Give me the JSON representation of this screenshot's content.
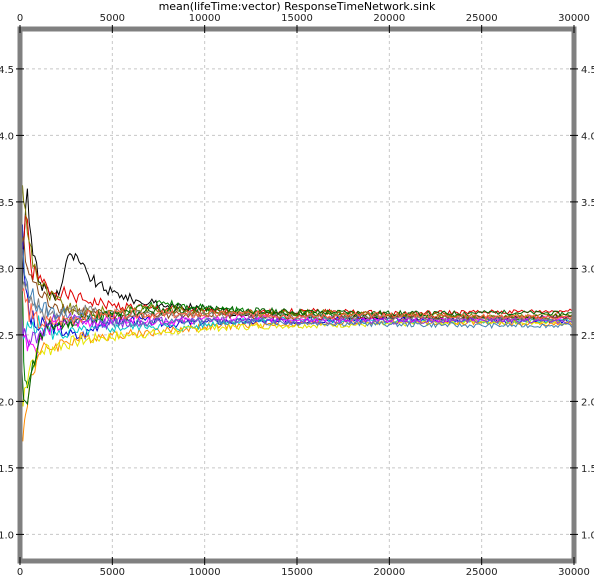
{
  "chart_data": {
    "type": "line",
    "title": "mean(lifeTime:vector) ResponseTimeNetwork.sink",
    "xlabel": "",
    "ylabel": "",
    "xlim": [
      0,
      30000
    ],
    "ylim": [
      0.8,
      4.8
    ],
    "xticks": [
      0,
      5000,
      10000,
      15000,
      20000,
      25000,
      30000
    ],
    "yticks": [
      1.0,
      1.5,
      2.0,
      2.5,
      3.0,
      3.5,
      4.0,
      4.5
    ],
    "grid": true,
    "legend": "none",
    "series": [
      {
        "color": "#000000",
        "points": [
          [
            0,
            1.2
          ],
          [
            150,
            3.0
          ],
          [
            400,
            3.6
          ],
          [
            700,
            3.1
          ],
          [
            1000,
            2.9
          ],
          [
            1400,
            2.85
          ],
          [
            1800,
            2.8
          ],
          [
            2200,
            2.85
          ],
          [
            2500,
            3.05
          ],
          [
            2800,
            3.1
          ],
          [
            3200,
            3.05
          ],
          [
            3700,
            2.95
          ],
          [
            4200,
            2.88
          ],
          [
            5000,
            2.82
          ],
          [
            5500,
            2.8
          ],
          [
            6500,
            2.75
          ],
          [
            8000,
            2.72
          ],
          [
            10000,
            2.7
          ],
          [
            12000,
            2.65
          ],
          [
            14000,
            2.66
          ],
          [
            16000,
            2.64
          ],
          [
            20000,
            2.63
          ],
          [
            25000,
            2.63
          ],
          [
            30000,
            2.64
          ]
        ]
      },
      {
        "color": "#e00000",
        "points": [
          [
            0,
            2.9
          ],
          [
            300,
            3.4
          ],
          [
            600,
            3.0
          ],
          [
            1000,
            2.92
          ],
          [
            1500,
            2.85
          ],
          [
            2500,
            2.8
          ],
          [
            3500,
            2.76
          ],
          [
            5000,
            2.72
          ],
          [
            7000,
            2.7
          ],
          [
            10000,
            2.68
          ],
          [
            13000,
            2.67
          ],
          [
            16000,
            2.68
          ],
          [
            20000,
            2.66
          ],
          [
            25000,
            2.67
          ],
          [
            30000,
            2.68
          ]
        ]
      },
      {
        "color": "#008000",
        "points": [
          [
            0,
            4.7
          ],
          [
            80,
            3.3
          ],
          [
            200,
            2.3
          ],
          [
            400,
            2.1
          ],
          [
            800,
            2.3
          ],
          [
            1200,
            2.5
          ],
          [
            1800,
            2.55
          ],
          [
            2500,
            2.6
          ],
          [
            3500,
            2.62
          ],
          [
            5000,
            2.66
          ],
          [
            7000,
            2.72
          ],
          [
            8000,
            2.74
          ],
          [
            10000,
            2.7
          ],
          [
            14000,
            2.66
          ],
          [
            18000,
            2.65
          ],
          [
            22000,
            2.64
          ],
          [
            26000,
            2.63
          ],
          [
            30000,
            2.62
          ]
        ]
      },
      {
        "color": "#0000d0",
        "points": [
          [
            0,
            3.6
          ],
          [
            200,
            3.0
          ],
          [
            500,
            2.65
          ],
          [
            900,
            2.55
          ],
          [
            1500,
            2.58
          ],
          [
            2500,
            2.52
          ],
          [
            3200,
            2.48
          ],
          [
            4500,
            2.6
          ],
          [
            6000,
            2.62
          ],
          [
            8000,
            2.58
          ],
          [
            10000,
            2.6
          ],
          [
            14000,
            2.6
          ],
          [
            18000,
            2.62
          ],
          [
            24000,
            2.61
          ],
          [
            30000,
            2.6
          ]
        ]
      },
      {
        "color": "#ff8c00",
        "points": [
          [
            0,
            1.6
          ],
          [
            150,
            1.7
          ],
          [
            300,
            1.9
          ],
          [
            600,
            2.2
          ],
          [
            1000,
            2.35
          ],
          [
            1500,
            2.4
          ],
          [
            2500,
            2.45
          ],
          [
            3500,
            2.48
          ],
          [
            5000,
            2.5
          ],
          [
            7000,
            2.52
          ],
          [
            10000,
            2.56
          ],
          [
            14000,
            2.58
          ],
          [
            20000,
            2.6
          ],
          [
            25000,
            2.59
          ],
          [
            30000,
            2.58
          ]
        ]
      },
      {
        "color": "#00c8c8",
        "points": [
          [
            0,
            2.4
          ],
          [
            300,
            2.5
          ],
          [
            700,
            2.6
          ],
          [
            1200,
            2.55
          ],
          [
            2000,
            2.5
          ],
          [
            3000,
            2.52
          ],
          [
            5000,
            2.55
          ],
          [
            7000,
            2.57
          ],
          [
            9000,
            2.55
          ],
          [
            11000,
            2.6
          ],
          [
            15000,
            2.62
          ],
          [
            20000,
            2.6
          ],
          [
            25000,
            2.6
          ],
          [
            30000,
            2.61
          ]
        ]
      },
      {
        "color": "#ff00ff",
        "points": [
          [
            0,
            2.6
          ],
          [
            300,
            2.5
          ],
          [
            800,
            2.4
          ],
          [
            1500,
            2.55
          ],
          [
            2500,
            2.58
          ],
          [
            4000,
            2.6
          ],
          [
            6000,
            2.62
          ],
          [
            8000,
            2.6
          ],
          [
            12000,
            2.63
          ],
          [
            16000,
            2.62
          ],
          [
            20000,
            2.61
          ],
          [
            25000,
            2.62
          ],
          [
            30000,
            2.63
          ]
        ]
      },
      {
        "color": "#e6e600",
        "points": [
          [
            0,
            2.0
          ],
          [
            250,
            2.1
          ],
          [
            600,
            2.3
          ],
          [
            1200,
            2.38
          ],
          [
            2000,
            2.42
          ],
          [
            3000,
            2.45
          ],
          [
            4500,
            2.48
          ],
          [
            6000,
            2.5
          ],
          [
            8000,
            2.52
          ],
          [
            10000,
            2.55
          ],
          [
            14000,
            2.57
          ],
          [
            20000,
            2.58
          ],
          [
            25000,
            2.6
          ],
          [
            30000,
            2.59
          ]
        ]
      },
      {
        "color": "#8b4513",
        "points": [
          [
            0,
            3.3
          ],
          [
            300,
            3.05
          ],
          [
            700,
            2.9
          ],
          [
            1200,
            2.78
          ],
          [
            2000,
            2.72
          ],
          [
            3000,
            2.68
          ],
          [
            4500,
            2.65
          ],
          [
            6000,
            2.64
          ],
          [
            9000,
            2.66
          ],
          [
            12000,
            2.64
          ],
          [
            16000,
            2.63
          ],
          [
            20000,
            2.64
          ],
          [
            25000,
            2.63
          ],
          [
            30000,
            2.62
          ]
        ]
      },
      {
        "color": "#808000",
        "points": [
          [
            0,
            3.7
          ],
          [
            200,
            3.5
          ],
          [
            500,
            3.2
          ],
          [
            900,
            2.95
          ],
          [
            1500,
            2.8
          ],
          [
            2500,
            2.7
          ],
          [
            3500,
            2.66
          ],
          [
            5000,
            2.68
          ],
          [
            7000,
            2.7
          ],
          [
            9000,
            2.68
          ],
          [
            12000,
            2.66
          ],
          [
            16000,
            2.67
          ],
          [
            20000,
            2.65
          ],
          [
            25000,
            2.64
          ],
          [
            30000,
            2.65
          ]
        ]
      },
      {
        "color": "#7f7f7f",
        "points": [
          [
            0,
            3.0
          ],
          [
            300,
            2.85
          ],
          [
            700,
            2.72
          ],
          [
            1200,
            2.68
          ],
          [
            2000,
            2.66
          ],
          [
            3000,
            2.7
          ],
          [
            4500,
            2.67
          ],
          [
            6000,
            2.65
          ],
          [
            9000,
            2.66
          ],
          [
            12000,
            2.65
          ],
          [
            16000,
            2.64
          ],
          [
            20000,
            2.63
          ],
          [
            25000,
            2.62
          ],
          [
            30000,
            2.61
          ]
        ]
      },
      {
        "color": "#006400",
        "points": [
          [
            0,
            2.2
          ],
          [
            300,
            2.0
          ],
          [
            600,
            2.2
          ],
          [
            1000,
            2.45
          ],
          [
            1500,
            2.55
          ],
          [
            2500,
            2.6
          ],
          [
            3500,
            2.63
          ],
          [
            5000,
            2.65
          ],
          [
            7000,
            2.68
          ],
          [
            10000,
            2.7
          ],
          [
            13000,
            2.68
          ],
          [
            17000,
            2.67
          ],
          [
            22000,
            2.66
          ],
          [
            26000,
            2.67
          ],
          [
            30000,
            2.66
          ]
        ]
      },
      {
        "color": "#8a2be2",
        "points": [
          [
            0,
            2.7
          ],
          [
            250,
            2.55
          ],
          [
            600,
            2.45
          ],
          [
            1000,
            2.5
          ],
          [
            1600,
            2.58
          ],
          [
            2500,
            2.62
          ],
          [
            3500,
            2.6
          ],
          [
            5000,
            2.58
          ],
          [
            7000,
            2.6
          ],
          [
            9000,
            2.62
          ],
          [
            12000,
            2.61
          ],
          [
            16000,
            2.6
          ],
          [
            20000,
            2.6
          ],
          [
            25000,
            2.61
          ],
          [
            30000,
            2.6
          ]
        ]
      },
      {
        "color": "#4682b4",
        "points": [
          [
            0,
            3.2
          ],
          [
            250,
            2.95
          ],
          [
            600,
            2.8
          ],
          [
            1000,
            2.72
          ],
          [
            1600,
            2.68
          ],
          [
            2500,
            2.65
          ],
          [
            3500,
            2.62
          ],
          [
            5000,
            2.6
          ],
          [
            7000,
            2.59
          ],
          [
            9000,
            2.6
          ],
          [
            12000,
            2.6
          ],
          [
            16000,
            2.59
          ],
          [
            20000,
            2.58
          ],
          [
            25000,
            2.57
          ],
          [
            30000,
            2.57
          ]
        ]
      },
      {
        "color": "#ff6347",
        "points": [
          [
            0,
            2.9
          ],
          [
            300,
            2.75
          ],
          [
            700,
            2.62
          ],
          [
            1200,
            2.58
          ],
          [
            2000,
            2.6
          ],
          [
            3000,
            2.63
          ],
          [
            4500,
            2.65
          ],
          [
            6000,
            2.66
          ],
          [
            9000,
            2.65
          ],
          [
            12000,
            2.66
          ],
          [
            16000,
            2.64
          ],
          [
            20000,
            2.65
          ],
          [
            25000,
            2.64
          ],
          [
            30000,
            2.63
          ]
        ]
      }
    ]
  }
}
